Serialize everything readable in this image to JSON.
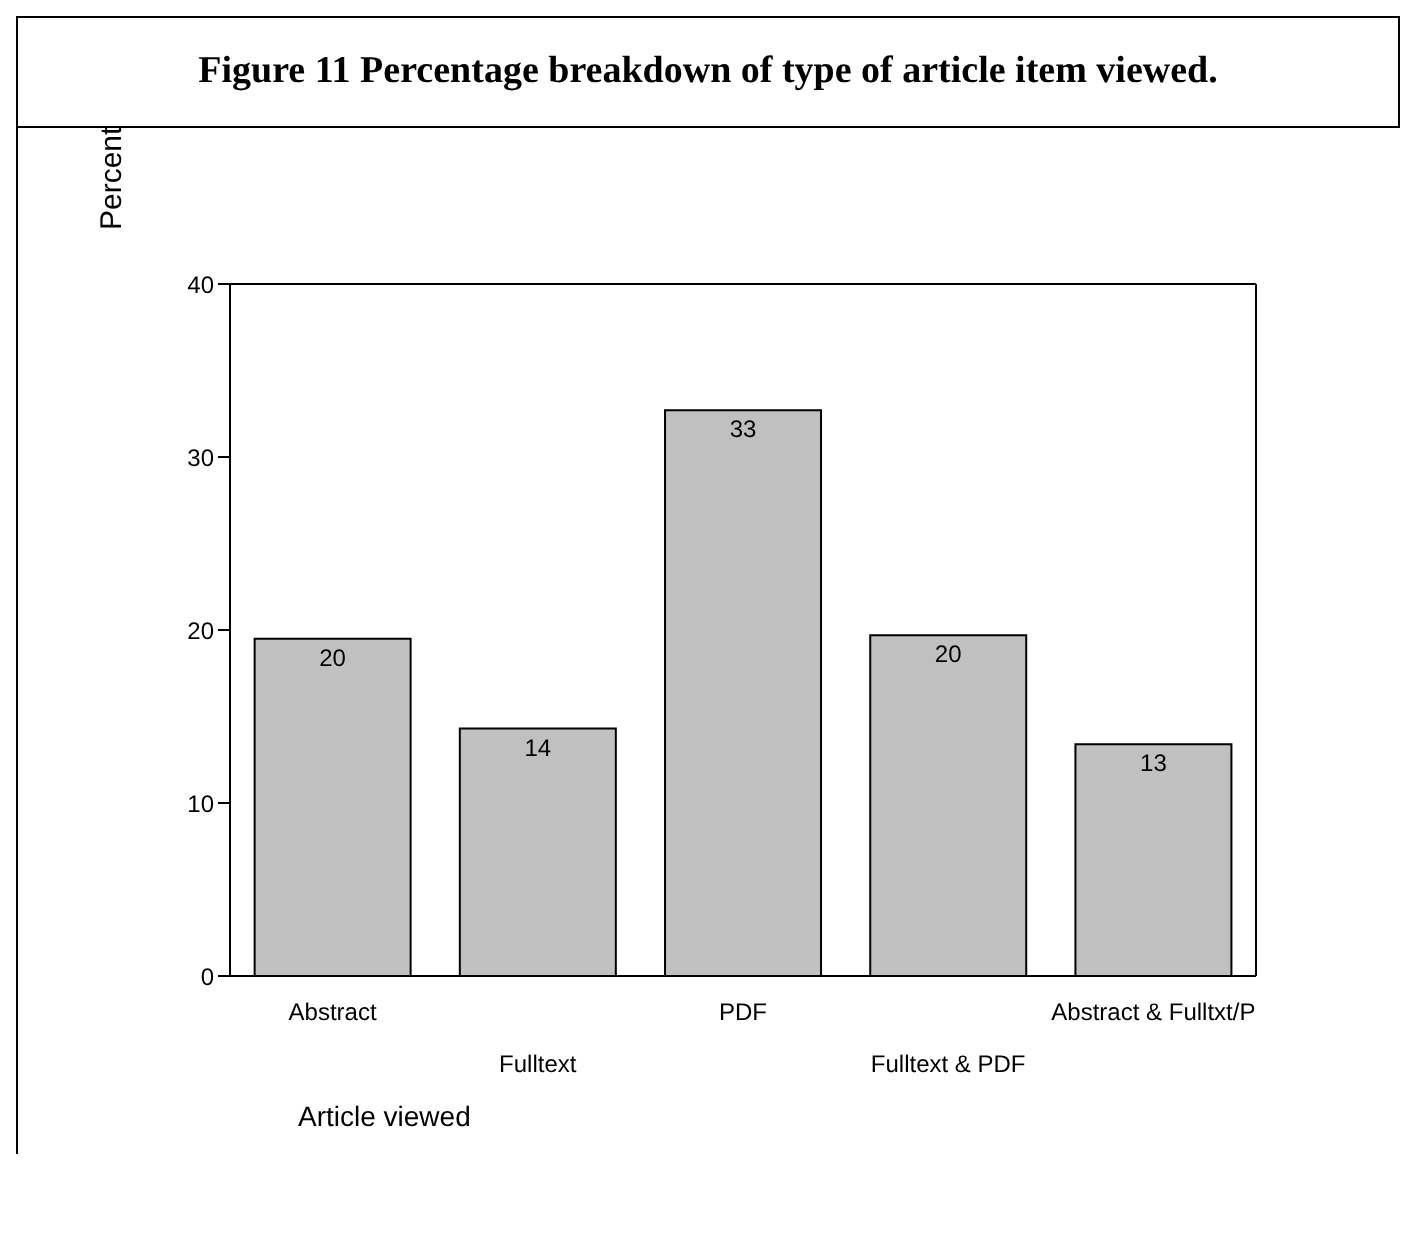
{
  "chart_data": {
    "type": "bar",
    "title": "Figure 11 Percentage breakdown of type of article item viewed.",
    "xlabel": "Article viewed",
    "ylabel": "Percent",
    "categories": [
      "Abstract",
      "Fulltext",
      "PDF",
      "Fulltext & PDF",
      "Abstract & Fulltxt/P"
    ],
    "values": [
      19.5,
      14.3,
      32.7,
      19.7,
      13.4
    ],
    "value_labels": [
      "20",
      "14",
      "33",
      "20",
      "13"
    ],
    "color": "#c0c0c0",
    "ylim": [
      0,
      40
    ],
    "yticks": [
      0,
      10,
      20,
      30,
      40
    ]
  }
}
